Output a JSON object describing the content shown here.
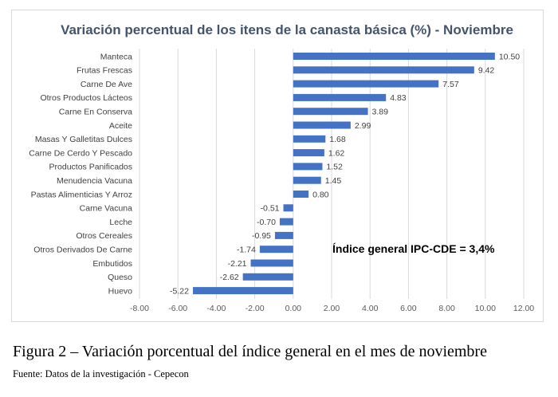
{
  "chart_data": {
    "type": "bar",
    "orientation": "horizontal",
    "title": "Variación percentual de los itens de la canasta básica (%) - Noviembre",
    "categories": [
      "Manteca",
      "Frutas Frescas",
      "Carne De Ave",
      "Otros Productos Lácteos",
      "Carne En Conserva",
      "Aceite",
      "Masas Y Galletitas Dulces",
      "Carne De Cerdo Y Pescado",
      "Productos Panificados",
      "Menudencia Vacuna",
      "Pastas Alimenticias Y Arroz",
      "Carne Vacuna",
      "Leche",
      "Otros Cereales",
      "Otros Derivados De Carne",
      "Embutidos",
      "Queso",
      "Huevo"
    ],
    "values": [
      10.5,
      9.42,
      7.57,
      4.83,
      3.89,
      2.99,
      1.68,
      1.62,
      1.52,
      1.45,
      0.8,
      -0.51,
      -0.7,
      -0.95,
      -1.74,
      -2.21,
      -2.62,
      -5.22
    ],
    "value_labels": [
      "10.50",
      "9.42",
      "7.57",
      "4.83",
      "3.89",
      "2.99",
      "1.68",
      "1.62",
      "1.52",
      "1.45",
      "0.80",
      "-0.51",
      "-0.70",
      "-0.95",
      "-1.74",
      "-2.21",
      "-2.62",
      "-5.22"
    ],
    "xlim": [
      -8,
      12
    ],
    "xticks": [
      "-8.00",
      "-6.00",
      "-4.00",
      "-2.00",
      "0.00",
      "2.00",
      "4.00",
      "6.00",
      "8.00",
      "10.00",
      "12.00"
    ],
    "xlabel": "",
    "ylabel": "",
    "grid": "vertical",
    "legend": "none",
    "bar_color": "#4472c4",
    "annotation": "Índice general IPC-CDE = 3,4%"
  },
  "caption": "Figura 2 – Variación porcentual del índice general en el mes de noviembre",
  "source": "Fuente: Datos de la investigación - Cepecon"
}
